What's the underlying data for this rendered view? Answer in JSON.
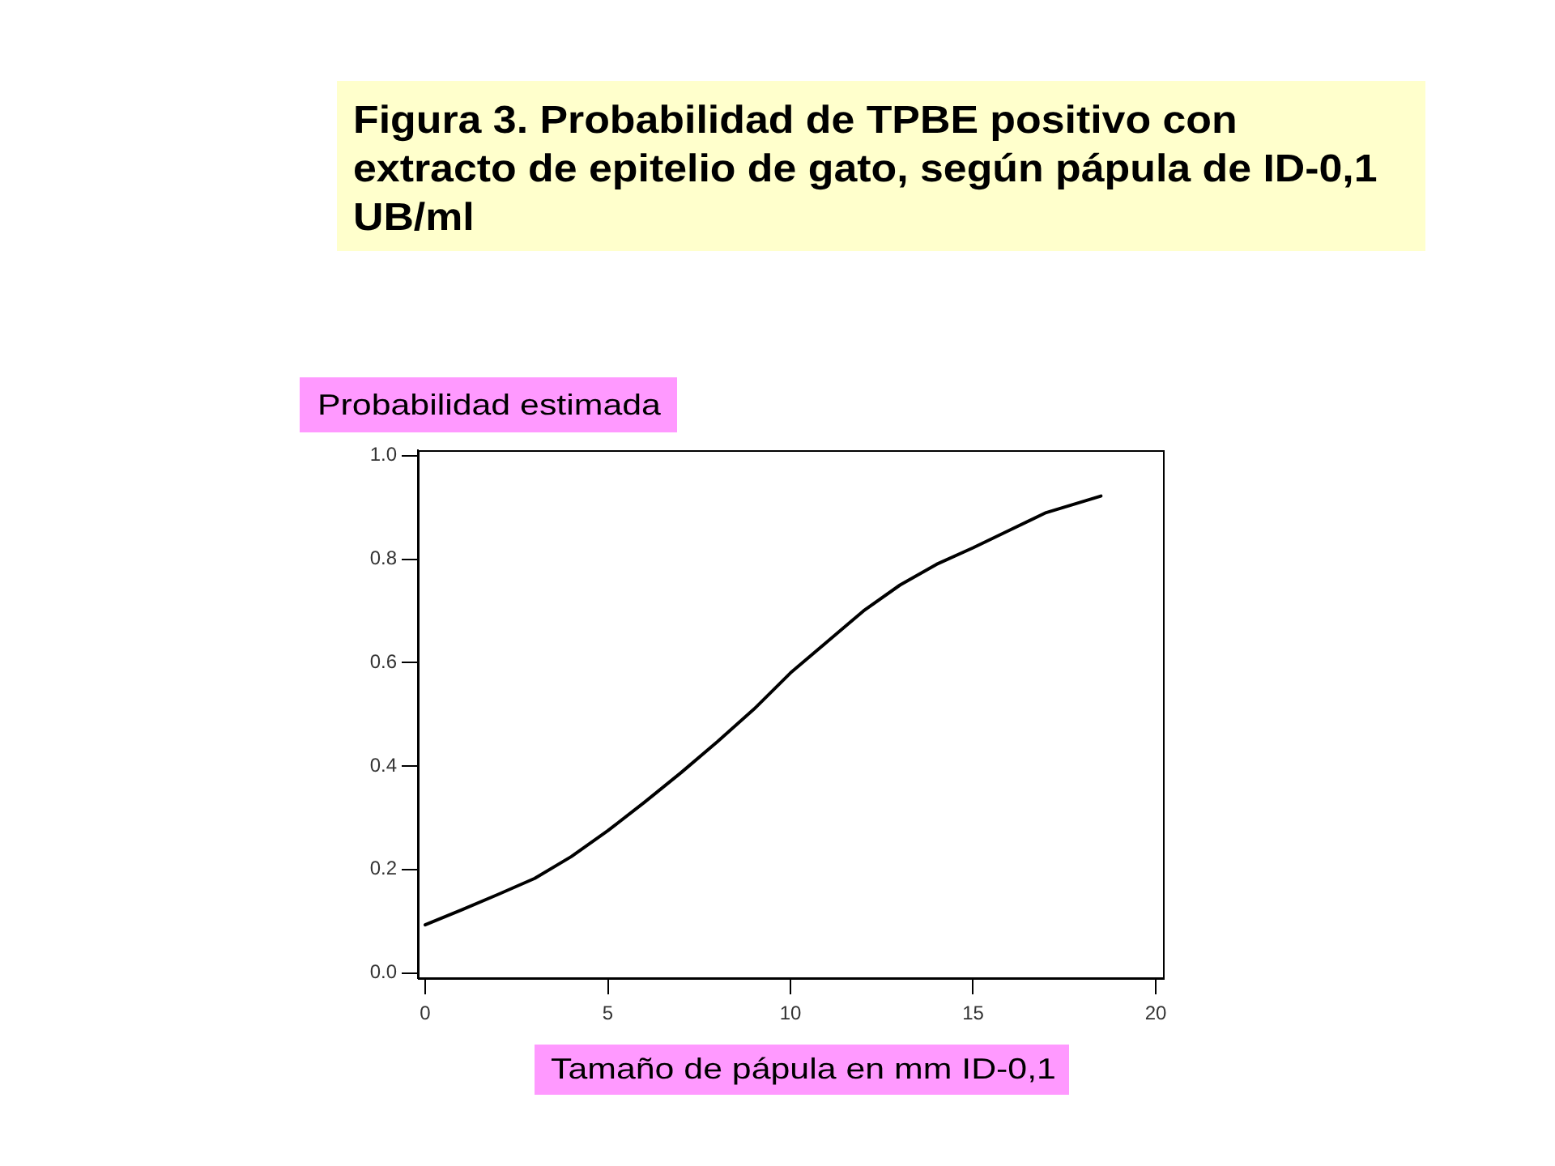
{
  "chart_data": {
    "type": "line",
    "title": "Figura 3. Probabilidad de TPBE positivo con extracto de epitelio de gato, según pápula de ID-0,1 UB/ml",
    "xlabel": "Tamaño de pápula en mm ID-0,1",
    "ylabel": "Probabilidad estimada",
    "x": [
      0,
      1,
      2,
      3,
      4,
      5,
      6,
      7,
      8,
      9,
      10,
      11,
      12,
      13,
      14,
      15,
      16,
      17,
      18.5
    ],
    "series": [
      {
        "color": "#000000",
        "values": [
          0.093,
          0.122,
          0.152,
          0.183,
          0.225,
          0.275,
          0.33,
          0.387,
          0.447,
          0.51,
          0.58,
          0.64,
          0.7,
          0.75,
          0.79,
          0.822,
          0.856,
          0.89,
          0.922
        ]
      }
    ],
    "xlim": [
      -0.2,
      20.2
    ],
    "ylim": [
      -0.01,
      1.01
    ],
    "xticks": [
      0,
      5,
      10,
      15,
      20
    ],
    "yticks": [
      {
        "value": 0,
        "label": "0.0"
      },
      0.2,
      0.4,
      0.6,
      0.8,
      {
        "value": 1,
        "label": "1.0"
      }
    ],
    "marker": "none",
    "legend": false
  }
}
